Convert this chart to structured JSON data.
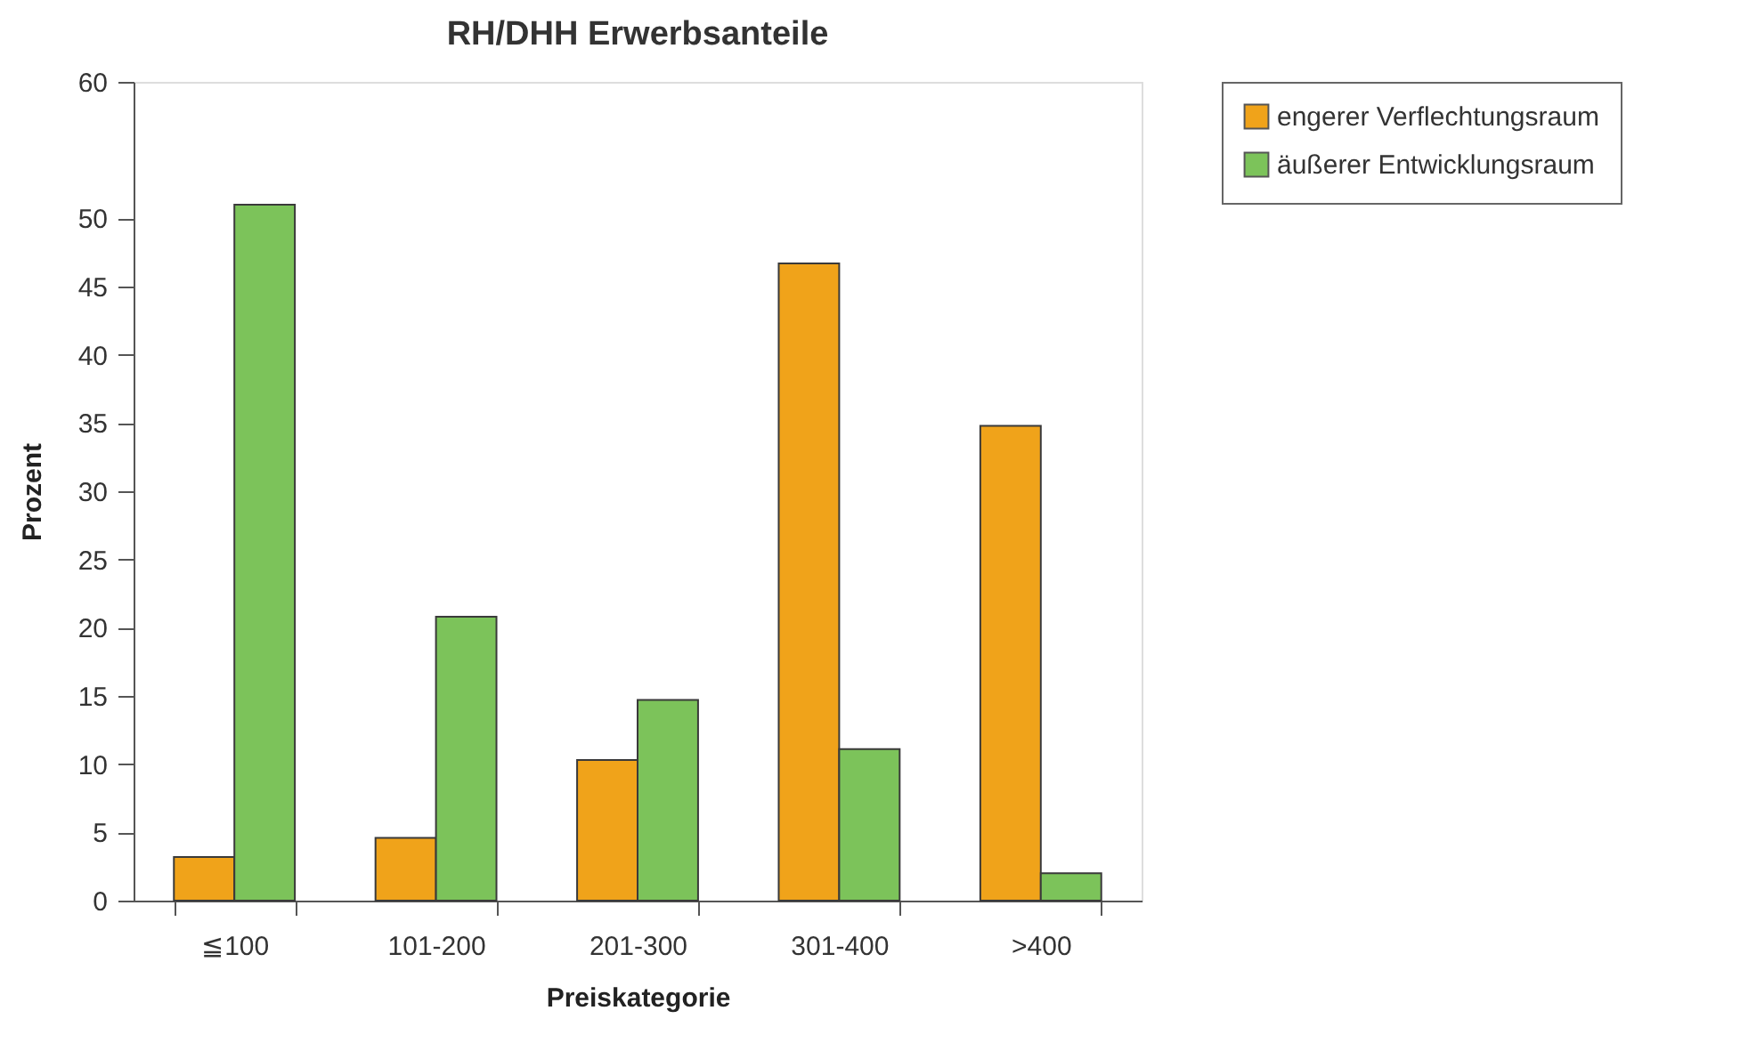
{
  "chart_data": {
    "type": "bar",
    "title": "RH/DHH Erwerbsanteile",
    "xlabel": "Preiskategorie",
    "ylabel": "Prozent",
    "categories": [
      "≦100",
      "101-200",
      "201-300",
      "301-400",
      ">400"
    ],
    "series": [
      {
        "name": "engerer Verflechtungsraum",
        "color": "#f0a31a",
        "values": [
          3.2,
          4.6,
          10.3,
          46.7,
          34.8
        ]
      },
      {
        "name": "äußerer Entwicklungsraum",
        "color": "#7cc35a",
        "values": [
          51.0,
          20.8,
          14.7,
          11.1,
          2.0
        ]
      }
    ],
    "ylim": [
      0,
      60
    ],
    "yticks": [
      0,
      5,
      10,
      15,
      20,
      25,
      30,
      35,
      40,
      45,
      50,
      60
    ],
    "legend": "top right"
  }
}
